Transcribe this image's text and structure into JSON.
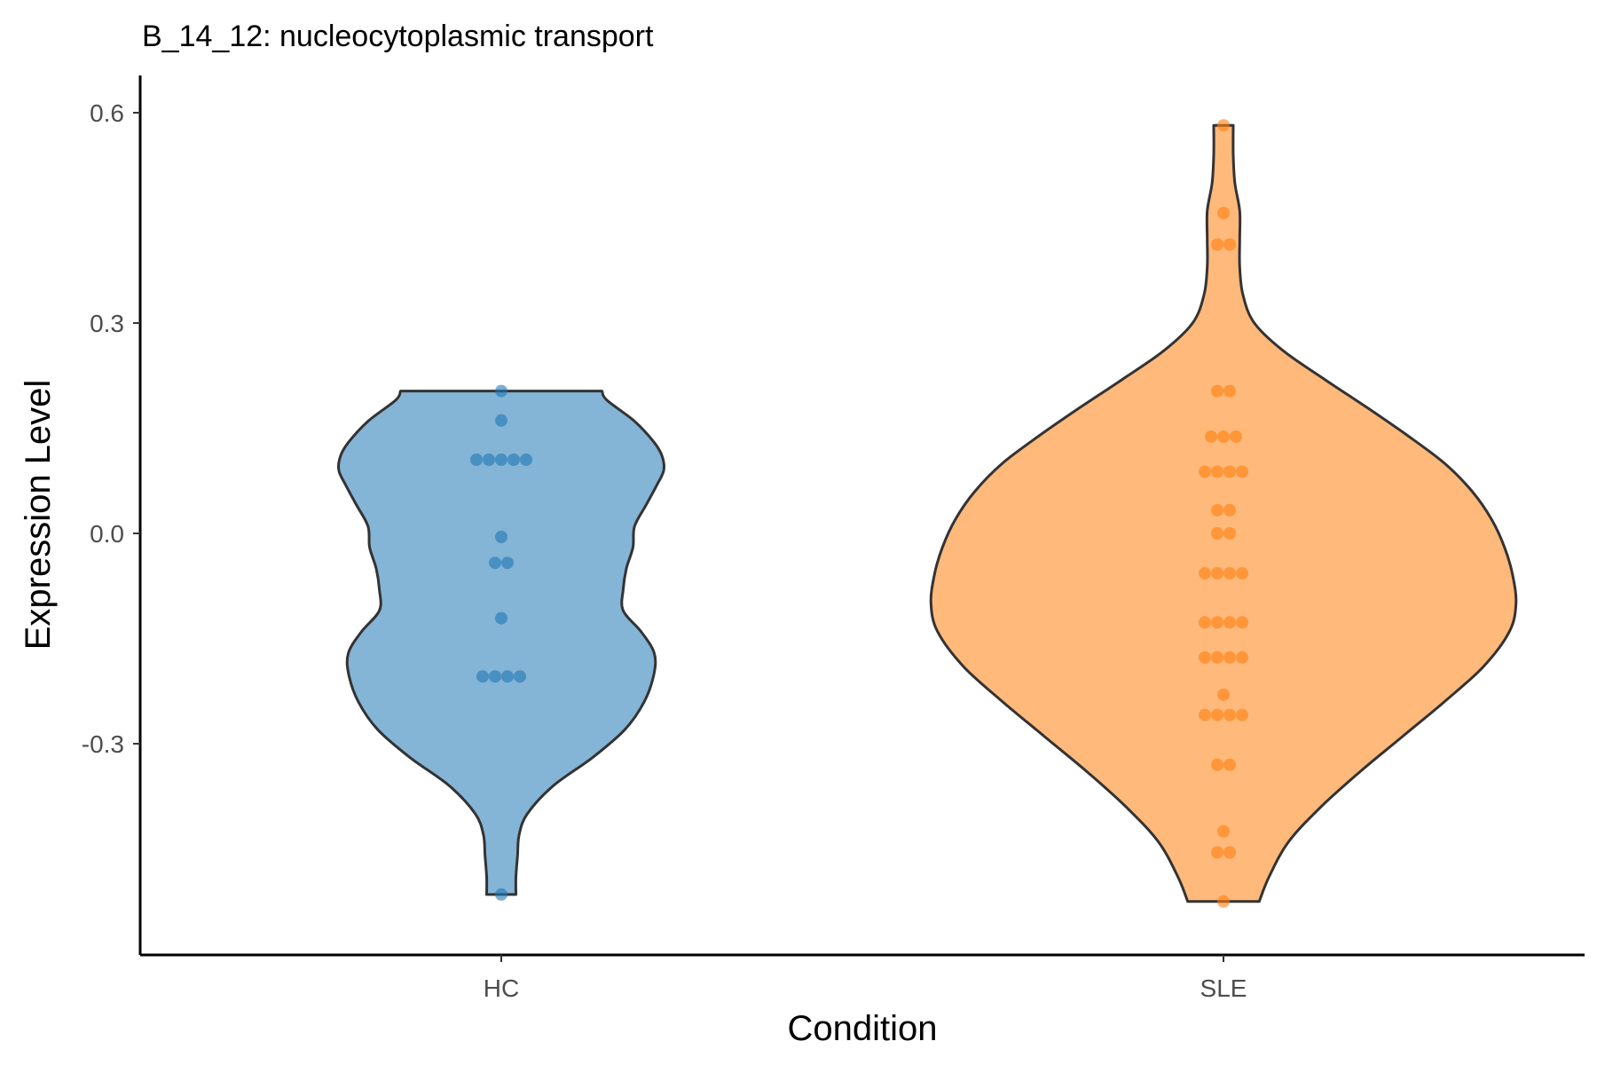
{
  "chart_data": {
    "type": "violin",
    "title": "B_14_12: nucleocytoplasmic transport",
    "xlabel": "Condition",
    "ylabel": "Expression Level",
    "categories": [
      "HC",
      "SLE"
    ],
    "ylim": [
      -0.6,
      0.65
    ],
    "yticks": [
      -0.3,
      0.0,
      0.3,
      0.6
    ],
    "ytick_labels": [
      "-0.3",
      "0.0",
      "0.3",
      "0.6"
    ],
    "grid": false,
    "legend": "none",
    "colors": {
      "HC": "#1f77b4",
      "SLE": "#ff7f0e"
    },
    "violin_profiles": [
      {
        "name": "HC",
        "ymin": -0.515,
        "ymax": 0.203,
        "profile": [
          [
            -0.515,
            0.045
          ],
          [
            -0.49,
            0.045
          ],
          [
            -0.46,
            0.05
          ],
          [
            -0.43,
            0.055
          ],
          [
            -0.4,
            0.08
          ],
          [
            -0.36,
            0.16
          ],
          [
            -0.32,
            0.28
          ],
          [
            -0.28,
            0.38
          ],
          [
            -0.24,
            0.44
          ],
          [
            -0.2,
            0.47
          ],
          [
            -0.17,
            0.47
          ],
          [
            -0.14,
            0.43
          ],
          [
            -0.11,
            0.375
          ],
          [
            -0.08,
            0.375
          ],
          [
            -0.05,
            0.385
          ],
          [
            -0.02,
            0.405
          ],
          [
            0.01,
            0.41
          ],
          [
            0.04,
            0.445
          ],
          [
            0.07,
            0.48
          ],
          [
            0.09,
            0.5
          ],
          [
            0.11,
            0.495
          ],
          [
            0.13,
            0.47
          ],
          [
            0.16,
            0.41
          ],
          [
            0.19,
            0.325
          ],
          [
            0.203,
            0.31
          ]
        ]
      },
      {
        "name": "SLE",
        "ymin": -0.525,
        "ymax": 0.582,
        "profile": [
          [
            -0.525,
            0.11
          ],
          [
            -0.49,
            0.14
          ],
          [
            -0.44,
            0.2
          ],
          [
            -0.39,
            0.3
          ],
          [
            -0.34,
            0.42
          ],
          [
            -0.29,
            0.55
          ],
          [
            -0.24,
            0.68
          ],
          [
            -0.19,
            0.8
          ],
          [
            -0.14,
            0.88
          ],
          [
            -0.1,
            0.9
          ],
          [
            -0.06,
            0.89
          ],
          [
            -0.02,
            0.865
          ],
          [
            0.02,
            0.825
          ],
          [
            0.06,
            0.765
          ],
          [
            0.1,
            0.68
          ],
          [
            0.14,
            0.565
          ],
          [
            0.18,
            0.44
          ],
          [
            0.22,
            0.31
          ],
          [
            0.26,
            0.185
          ],
          [
            0.3,
            0.095
          ],
          [
            0.34,
            0.06
          ],
          [
            0.38,
            0.05
          ],
          [
            0.42,
            0.05
          ],
          [
            0.46,
            0.05
          ],
          [
            0.5,
            0.035
          ],
          [
            0.54,
            0.03
          ],
          [
            0.582,
            0.03
          ]
        ]
      }
    ],
    "series": [
      {
        "name": "HC",
        "values": [
          0.203,
          0.161,
          0.105,
          0.105,
          0.105,
          0.105,
          0.105,
          -0.005,
          -0.042,
          -0.042,
          -0.121,
          -0.204,
          -0.204,
          -0.204,
          -0.204,
          -0.515
        ]
      },
      {
        "name": "SLE",
        "values": [
          0.582,
          0.457,
          0.412,
          0.412,
          0.203,
          0.203,
          0.138,
          0.138,
          0.138,
          0.088,
          0.088,
          0.088,
          0.088,
          0.033,
          0.033,
          0.0,
          0.0,
          -0.057,
          -0.057,
          -0.057,
          -0.057,
          -0.127,
          -0.127,
          -0.127,
          -0.127,
          -0.177,
          -0.177,
          -0.177,
          -0.177,
          -0.23,
          -0.259,
          -0.259,
          -0.259,
          -0.259,
          -0.33,
          -0.33,
          -0.425,
          -0.455,
          -0.455,
          -0.525
        ]
      }
    ]
  }
}
